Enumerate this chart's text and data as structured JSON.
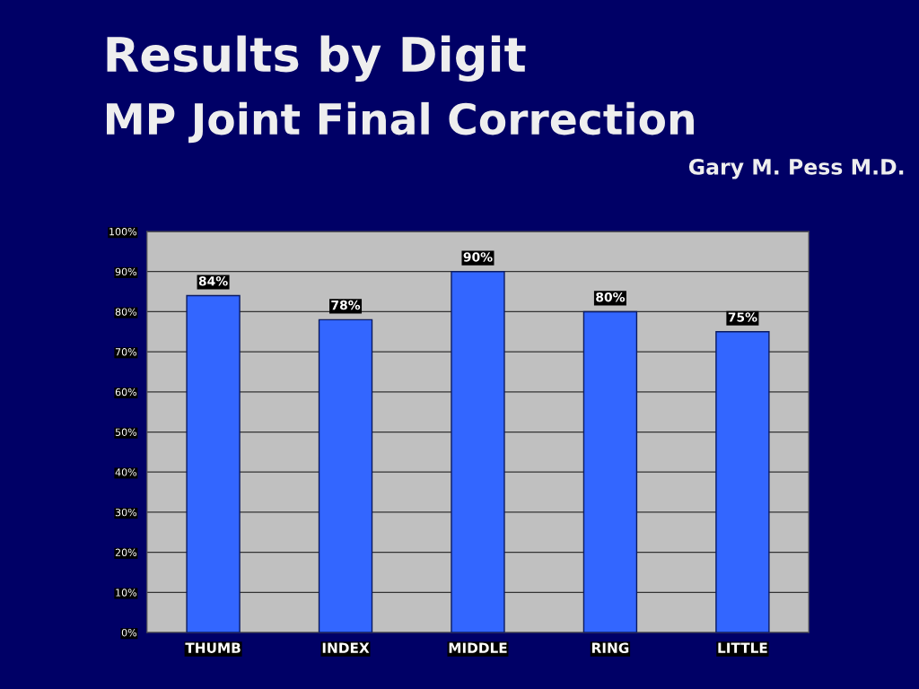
{
  "chart_data": {
    "type": "bar",
    "title": "Results by Digit",
    "subtitle": "MP Joint Final Correction",
    "annotations": [
      "Gary M. Pess M.D."
    ],
    "categories": [
      "THUMB",
      "INDEX",
      "MIDDLE",
      "RING",
      "LITTLE"
    ],
    "values": [
      84,
      78,
      90,
      80,
      75
    ],
    "color": "#3366ff",
    "value_labels": [
      "84%",
      "78%",
      "90%",
      "80%",
      "75%"
    ],
    "ylim": [
      0,
      100
    ],
    "yticks": [
      {
        "value": 0,
        "label": "0%"
      },
      {
        "value": 10,
        "label": "10%"
      },
      {
        "value": 20,
        "label": "20%"
      },
      {
        "value": 30,
        "label": "30%"
      },
      {
        "value": 40,
        "label": "40%"
      },
      {
        "value": 50,
        "label": "50%"
      },
      {
        "value": 60,
        "label": "60%"
      },
      {
        "value": 70,
        "label": "70%"
      },
      {
        "value": 80,
        "label": "80%"
      },
      {
        "value": 90,
        "label": "90%"
      },
      {
        "value": 100,
        "label": "100%"
      }
    ],
    "grid": "y",
    "legend": false
  }
}
